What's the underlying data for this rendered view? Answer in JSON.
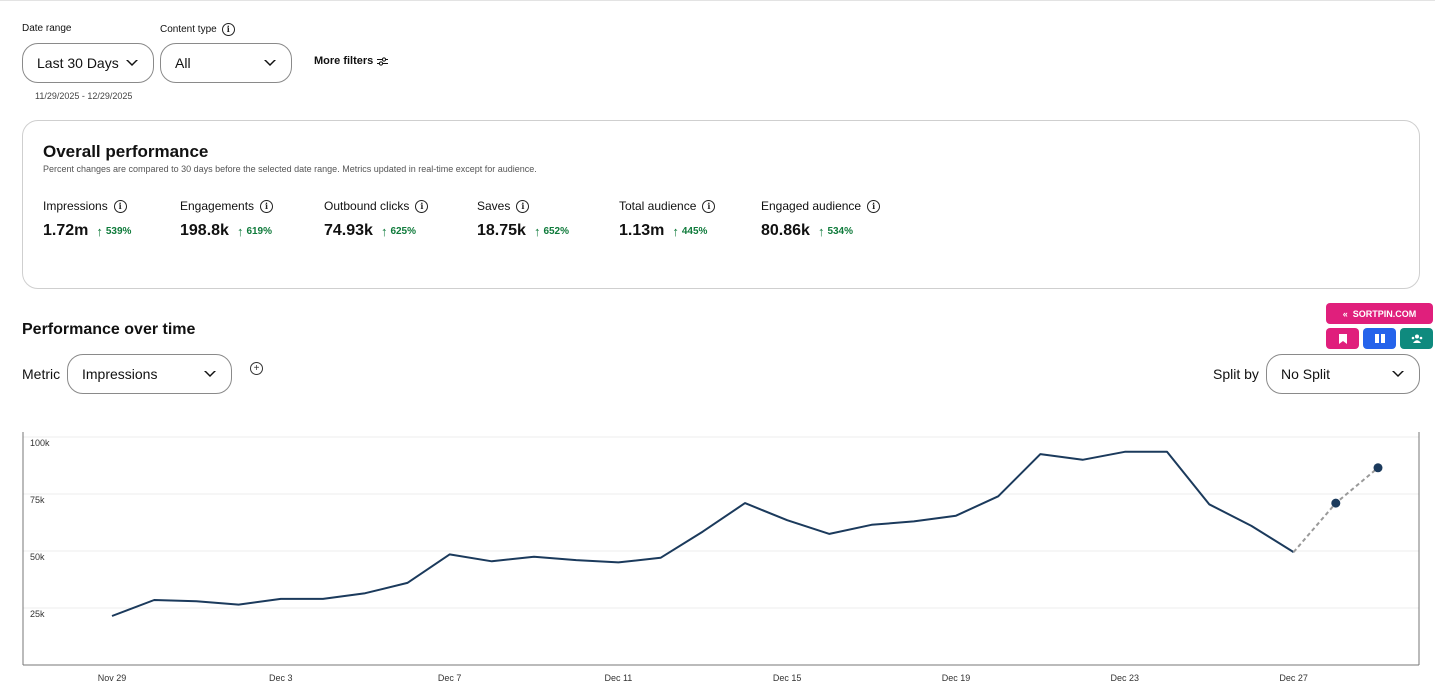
{
  "filters": {
    "date_range_label": "Date range",
    "date_range_value": "Last 30 Days",
    "date_range_sub": "11/29/2025 - 12/29/2025",
    "content_type_label": "Content type",
    "content_type_value": "All",
    "more_filters_label": "More filters"
  },
  "overall": {
    "title": "Overall performance",
    "subtitle": "Percent changes are compared to 30 days before the selected date range. Metrics updated in real-time except for audience.",
    "metrics": [
      {
        "label": "Impressions",
        "value": "1.72m",
        "change": "539%"
      },
      {
        "label": "Engagements",
        "value": "198.8k",
        "change": "619%"
      },
      {
        "label": "Outbound clicks",
        "value": "74.93k",
        "change": "625%"
      },
      {
        "label": "Saves",
        "value": "18.75k",
        "change": "652%"
      },
      {
        "label": "Total audience",
        "value": "1.13m",
        "change": "445%"
      },
      {
        "label": "Engaged audience",
        "value": "80.86k",
        "change": "534%"
      }
    ]
  },
  "performance": {
    "title": "Performance over time",
    "metric_label": "Metric",
    "metric_value": "Impressions",
    "split_label": "Split by",
    "split_value": "No Split"
  },
  "extension": {
    "main_label": "SORTPIN.COM",
    "colors": {
      "pink": "#e01f7c",
      "blue": "#2563eb",
      "teal": "#0f8a7e"
    },
    "buttons": [
      "bookmark-icon",
      "columns-icon",
      "users-icon"
    ]
  },
  "colors": {
    "line": "#1b3a5c",
    "positive": "#0e7a3a"
  },
  "chart_data": {
    "type": "line",
    "x": [
      "Nov 29",
      "Nov 30",
      "Dec 1",
      "Dec 2",
      "Dec 3",
      "Dec 4",
      "Dec 5",
      "Dec 6",
      "Dec 7",
      "Dec 8",
      "Dec 9",
      "Dec 10",
      "Dec 11",
      "Dec 12",
      "Dec 13",
      "Dec 14",
      "Dec 15",
      "Dec 16",
      "Dec 17",
      "Dec 18",
      "Dec 19",
      "Dec 20",
      "Dec 21",
      "Dec 22",
      "Dec 23",
      "Dec 24",
      "Dec 25",
      "Dec 26",
      "Dec 27",
      "Dec 28",
      "Dec 29"
    ],
    "series": [
      {
        "values": [
          21500,
          28500,
          28000,
          26500,
          29000,
          29000,
          31500,
          36000,
          48500,
          45500,
          47500,
          46000,
          45000,
          47000,
          58500,
          71000,
          63500,
          57500,
          61500,
          63000,
          65500,
          74000,
          92500,
          90000,
          93500,
          93500,
          70500,
          61000,
          49500,
          null,
          null
        ]
      },
      {
        "style": "dashed",
        "values": [
          null,
          null,
          null,
          null,
          null,
          null,
          null,
          null,
          null,
          null,
          null,
          null,
          null,
          null,
          null,
          null,
          null,
          null,
          null,
          null,
          null,
          null,
          null,
          null,
          null,
          null,
          null,
          null,
          49500,
          71000,
          86500
        ]
      }
    ],
    "x_ticks": [
      "Nov 29",
      "Dec 3",
      "Dec 7",
      "Dec 11",
      "Dec 15",
      "Dec 19",
      "Dec 23",
      "Dec 27"
    ],
    "y_ticks": [
      "25k",
      "50k",
      "75k",
      "100k"
    ],
    "ylim": [
      0,
      100000
    ],
    "grid": true
  }
}
